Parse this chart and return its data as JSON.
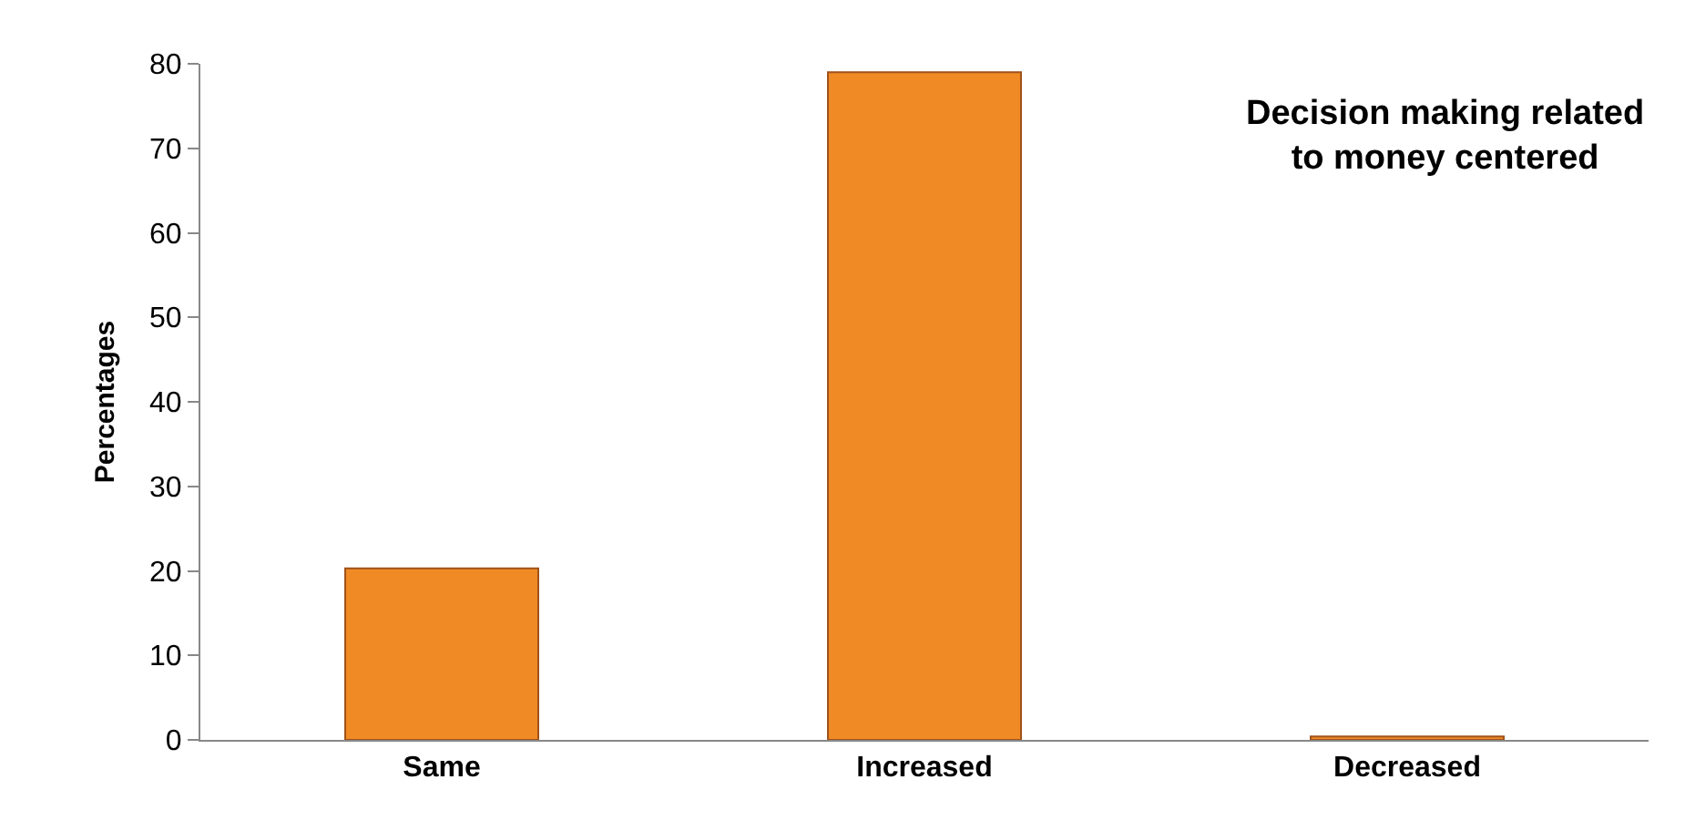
{
  "chart_data": {
    "type": "bar",
    "title": "Decision making related to money centered",
    "ylabel": "Percentages",
    "categories": [
      "Same",
      "Increased",
      "Decreased"
    ],
    "values": [
      20.3,
      79,
      0.4
    ],
    "color": "#f08a24",
    "ylim": [
      0,
      80
    ],
    "yticks": [
      0,
      10,
      20,
      30,
      40,
      50,
      60,
      70,
      80
    ]
  }
}
